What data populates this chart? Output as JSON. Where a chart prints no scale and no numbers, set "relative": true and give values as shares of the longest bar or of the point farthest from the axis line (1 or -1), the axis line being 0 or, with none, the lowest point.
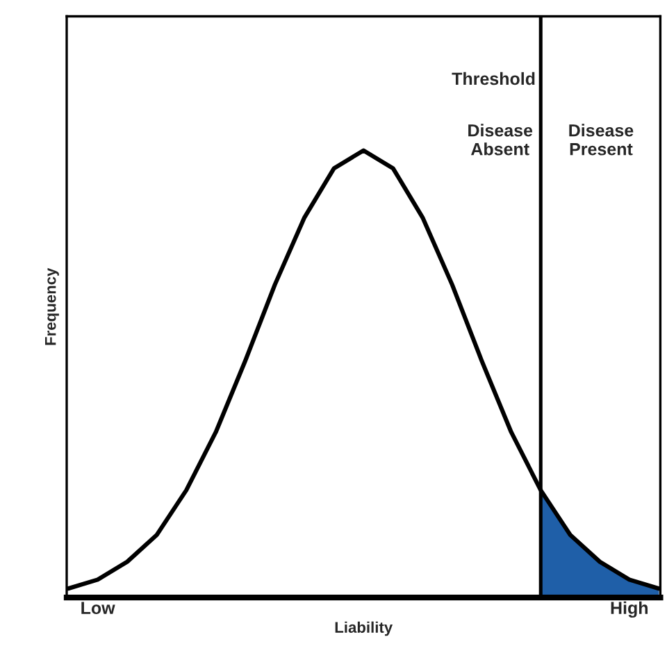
{
  "chart_data": {
    "type": "line",
    "relative": true,
    "xlabel": "Liability",
    "ylabel": "Frequency",
    "categories": [
      null,
      "Low",
      null,
      null,
      null,
      null,
      null,
      null,
      null,
      null,
      null,
      null,
      null,
      null,
      null,
      null,
      null,
      null,
      null,
      "High",
      null
    ],
    "tick_labels": "x",
    "series": [
      {
        "color": "#000000",
        "values": [
          0.02,
          0.04,
          0.08,
          0.14,
          0.24,
          0.37,
          0.53,
          0.7,
          0.85,
          0.96,
          1,
          0.96,
          0.85,
          0.7,
          0.53,
          0.37,
          0.24,
          0.14,
          0.08,
          0.04,
          0.02
        ]
      },
      {
        "type": "area",
        "color": "#1f5fa8",
        "values": [
          null,
          null,
          null,
          null,
          null,
          null,
          null,
          null,
          null,
          null,
          null,
          null,
          null,
          null,
          null,
          null,
          0.24,
          0.14,
          0.08,
          0.04,
          0.02
        ]
      }
    ],
    "annotations": [
      "Threshold",
      "Disease\nAbsent",
      "Disease\nPresent"
    ],
    "grid": false,
    "legend": false,
    "marker": "none",
    "line_style": "solid"
  }
}
